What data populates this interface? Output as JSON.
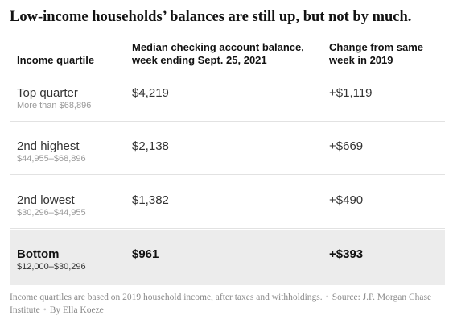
{
  "title": "Low-income households’ balances are still up, but not by much.",
  "table": {
    "headers": [
      "Income quartile",
      "Median checking account balance, week ending Sept. 25, 2021",
      "Change from same week in 2019"
    ],
    "rows": [
      {
        "quartile": "Top quarter",
        "range": "More than $68,896",
        "balance": "$4,219",
        "change": "+$1,119"
      },
      {
        "quartile": "2nd highest",
        "range": "$44,955–$68,896",
        "balance": "$2,138",
        "change": "+$669"
      },
      {
        "quartile": "2nd lowest",
        "range": "$30,296–$44,955",
        "balance": "$1,382",
        "change": "+$490"
      },
      {
        "quartile": "Bottom",
        "range": "$12,000–$30,296",
        "balance": "$961",
        "change": "+$393"
      }
    ],
    "highlighted_row": "Bottom"
  },
  "footer": {
    "note": "Income quartiles are based on 2019 household income, after taxes and withholdings.",
    "source": "Source: J.P. Morgan Chase Institute",
    "byline": "By Ella Koeze",
    "separator": "•"
  },
  "colors": {
    "text": "#121212",
    "muted": "#999999",
    "highlight_bg": "#ececec",
    "rule": "#e2e2e2"
  }
}
